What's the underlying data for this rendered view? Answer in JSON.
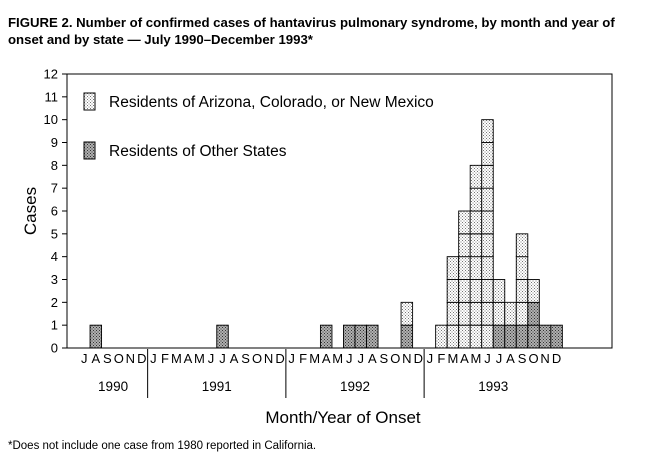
{
  "figure": {
    "title": "FIGURE 2. Number of confirmed cases of hantavirus pulmonary syndrome, by month and year of onset and by state — July 1990–December 1993*",
    "footnote": "*Does not include one case from 1980 reported in California."
  },
  "chart_data": {
    "type": "bar",
    "stacked": true,
    "ylabel": "Cases",
    "xlabel": "Month/Year of Onset",
    "ylim": [
      0,
      12
    ],
    "yticks": [
      0,
      1,
      2,
      3,
      4,
      5,
      6,
      7,
      8,
      9,
      10,
      11,
      12
    ],
    "legend_position": "top-left",
    "year_groups": [
      {
        "label": "1990",
        "months": [
          "J",
          "A",
          "S",
          "O",
          "N",
          "D"
        ]
      },
      {
        "label": "1991",
        "months": [
          "J",
          "F",
          "M",
          "A",
          "M",
          "J",
          "J",
          "A",
          "S",
          "O",
          "N",
          "D"
        ]
      },
      {
        "label": "1992",
        "months": [
          "J",
          "F",
          "M",
          "A",
          "M",
          "J",
          "J",
          "A",
          "S",
          "O",
          "N",
          "D"
        ]
      },
      {
        "label": "1993",
        "months": [
          "J",
          "F",
          "M",
          "A",
          "M",
          "J",
          "J",
          "A",
          "S",
          "O",
          "N",
          "D"
        ]
      }
    ],
    "series": [
      {
        "name": "Residents of Other States",
        "color": "#8a8a8a",
        "values": [
          0,
          1,
          0,
          0,
          0,
          0,
          0,
          0,
          0,
          0,
          0,
          0,
          1,
          0,
          0,
          0,
          0,
          0,
          0,
          0,
          0,
          1,
          0,
          1,
          1,
          1,
          0,
          0,
          1,
          0,
          0,
          0,
          0,
          0,
          0,
          0,
          1,
          1,
          1,
          2,
          1,
          1
        ]
      },
      {
        "name": "Residents of Arizona, Colorado, or New Mexico",
        "color": "#e6e6e6",
        "values": [
          0,
          0,
          0,
          0,
          0,
          0,
          0,
          0,
          0,
          0,
          0,
          0,
          0,
          0,
          0,
          0,
          0,
          0,
          0,
          0,
          0,
          0,
          0,
          0,
          0,
          0,
          0,
          0,
          1,
          0,
          0,
          1,
          4,
          6,
          8,
          10,
          2,
          1,
          4,
          1,
          0,
          0
        ]
      }
    ]
  }
}
